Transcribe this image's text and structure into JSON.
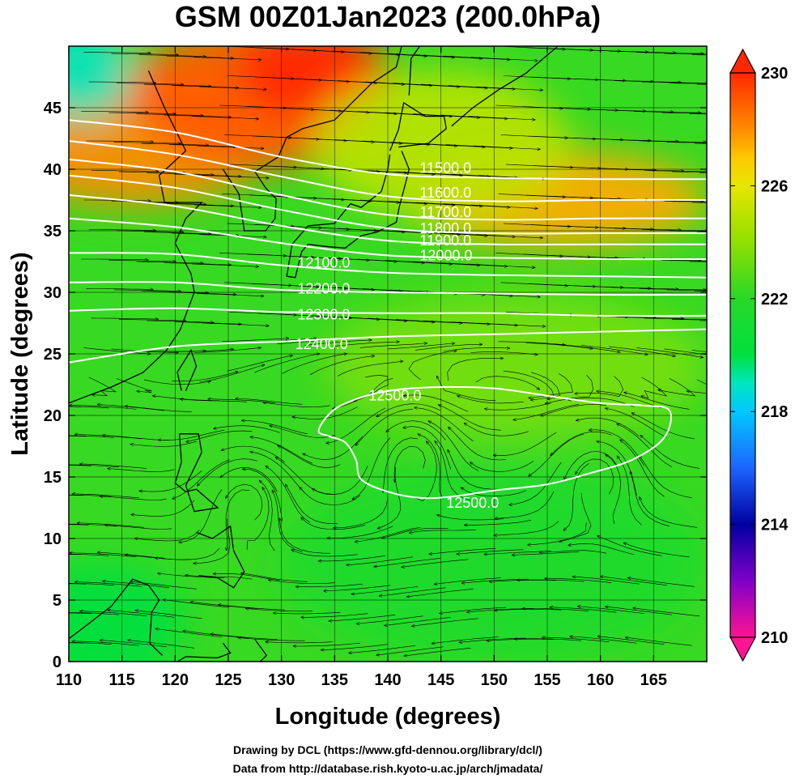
{
  "chart_data": {
    "type": "heatmap",
    "title": "GSM 00Z01Jan2023 (200.0hPa)",
    "xlabel": "Longitude (degrees)",
    "ylabel": "Latitude  (degrees)",
    "xlim": [
      110,
      170
    ],
    "ylim": [
      0,
      50
    ],
    "xticks": [
      "110",
      "115",
      "120",
      "125",
      "130",
      "135",
      "140",
      "145",
      "150",
      "155",
      "160",
      "165"
    ],
    "yticks": [
      "0",
      "5",
      "10",
      "15",
      "20",
      "25",
      "30",
      "35",
      "40",
      "45"
    ],
    "grid": true,
    "colorbar": {
      "range": [
        210,
        230
      ],
      "labels": [
        "230",
        "226",
        "222",
        "218",
        "214",
        "210"
      ],
      "stops": [
        {
          "v": 210,
          "color": "#ff1493"
        },
        {
          "v": 212,
          "color": "#8000c8"
        },
        {
          "v": 214,
          "color": "#0000a0"
        },
        {
          "v": 216,
          "color": "#1e64ff"
        },
        {
          "v": 218,
          "color": "#00c8ff"
        },
        {
          "v": 219,
          "color": "#00e6c0"
        },
        {
          "v": 220,
          "color": "#00e040"
        },
        {
          "v": 222,
          "color": "#28d828"
        },
        {
          "v": 224,
          "color": "#90e000"
        },
        {
          "v": 226,
          "color": "#e6e600"
        },
        {
          "v": 227,
          "color": "#ffc800"
        },
        {
          "v": 228,
          "color": "#ff8c00"
        },
        {
          "v": 230,
          "color": "#ff2800"
        }
      ]
    },
    "field_blobs": [
      {
        "lon": 116,
        "lat": 43,
        "rx": 14,
        "ry": 6,
        "v": 228
      },
      {
        "lon": 128,
        "lat": 46,
        "rx": 12,
        "ry": 6,
        "v": 229
      },
      {
        "lon": 133,
        "lat": 48,
        "rx": 7,
        "ry": 4,
        "v": 230
      },
      {
        "lon": 156,
        "lat": 37.5,
        "rx": 14,
        "ry": 4,
        "v": 227.5
      },
      {
        "lon": 145,
        "lat": 42,
        "rx": 12,
        "ry": 6,
        "v": 225
      },
      {
        "lon": 111,
        "lat": 48,
        "rx": 5,
        "ry": 4,
        "v": 219
      },
      {
        "lon": 113,
        "lat": 3,
        "rx": 8,
        "ry": 5,
        "v": 220
      },
      {
        "lon": 152,
        "lat": 24,
        "rx": 18,
        "ry": 6,
        "v": 223.5
      },
      {
        "lon": 150,
        "lat": 8,
        "rx": 20,
        "ry": 8,
        "v": 221.5
      }
    ],
    "contours": [
      {
        "level": "11500.0",
        "points": [
          [
            110,
            44
          ],
          [
            120,
            43
          ],
          [
            130,
            41
          ],
          [
            140,
            39.6
          ],
          [
            150,
            39.3
          ],
          [
            160,
            39.2
          ],
          [
            170,
            39.2
          ]
        ]
      },
      {
        "level": "11600.0",
        "points": [
          [
            110,
            42.3
          ],
          [
            120,
            41.2
          ],
          [
            130,
            39.4
          ],
          [
            140,
            37.8
          ],
          [
            150,
            37.4
          ],
          [
            160,
            37.5
          ],
          [
            170,
            37.5
          ]
        ]
      },
      {
        "level": "11700.0",
        "points": [
          [
            110,
            40.8
          ],
          [
            120,
            39.8
          ],
          [
            130,
            37.9
          ],
          [
            140,
            36.3
          ],
          [
            150,
            35.9
          ],
          [
            160,
            36
          ],
          [
            170,
            36
          ]
        ]
      },
      {
        "level": "11800.0",
        "points": [
          [
            110,
            39.5
          ],
          [
            120,
            38.5
          ],
          [
            130,
            36.7
          ],
          [
            140,
            35.2
          ],
          [
            150,
            34.8
          ],
          [
            160,
            34.8
          ],
          [
            170,
            34.8
          ]
        ]
      },
      {
        "level": "11900.0",
        "points": [
          [
            110,
            37.9
          ],
          [
            120,
            37
          ],
          [
            130,
            35.4
          ],
          [
            140,
            34.2
          ],
          [
            150,
            33.9
          ],
          [
            160,
            33.9
          ],
          [
            170,
            33.9
          ]
        ]
      },
      {
        "level": "12000.0",
        "points": [
          [
            110,
            36
          ],
          [
            120,
            35.3
          ],
          [
            130,
            34
          ],
          [
            140,
            33
          ],
          [
            150,
            32.8
          ],
          [
            160,
            32.7
          ],
          [
            170,
            32.7
          ]
        ]
      },
      {
        "level": "12100.0",
        "points": [
          [
            110,
            33.2
          ],
          [
            120,
            33.1
          ],
          [
            130,
            32.2
          ],
          [
            140,
            31.6
          ],
          [
            150,
            31.4
          ],
          [
            160,
            31.3
          ],
          [
            170,
            31.2
          ]
        ]
      },
      {
        "level": "12200.0",
        "points": [
          [
            110,
            30.8
          ],
          [
            120,
            30.8
          ],
          [
            130,
            30.2
          ],
          [
            140,
            30
          ],
          [
            150,
            29.9
          ],
          [
            160,
            29.8
          ],
          [
            170,
            29.8
          ]
        ]
      },
      {
        "level": "12300.0",
        "points": [
          [
            110,
            28.5
          ],
          [
            120,
            28.7
          ],
          [
            130,
            28.4
          ],
          [
            140,
            28.3
          ],
          [
            150,
            28.3
          ],
          [
            160,
            28.1
          ],
          [
            170,
            28.1
          ]
        ]
      },
      {
        "level": "12400.0",
        "points": [
          [
            110,
            24.3
          ],
          [
            120,
            25.6
          ],
          [
            130,
            26
          ],
          [
            140,
            26.4
          ],
          [
            150,
            26.6
          ],
          [
            160,
            26.8
          ],
          [
            170,
            27
          ]
        ]
      }
    ],
    "closed_contour": {
      "level": "12500.0",
      "points": [
        [
          133.5,
          18.8
        ],
        [
          135,
          20.5
        ],
        [
          138,
          21.6
        ],
        [
          141,
          22.1
        ],
        [
          145,
          22.3
        ],
        [
          150,
          22.2
        ],
        [
          155,
          21.6
        ],
        [
          160,
          21
        ],
        [
          164,
          20.8
        ],
        [
          166.5,
          20.4
        ],
        [
          166,
          18.2
        ],
        [
          163,
          16.4
        ],
        [
          159,
          15.3
        ],
        [
          155,
          14.4
        ],
        [
          150,
          13.9
        ],
        [
          146,
          13.4
        ],
        [
          143,
          13.3
        ],
        [
          140,
          13.8
        ],
        [
          137.5,
          14.8
        ],
        [
          137,
          16.4
        ],
        [
          136,
          17.8
        ],
        [
          134.5,
          18.3
        ]
      ]
    },
    "contour_labels": [
      {
        "text": "11500.0",
        "lon": 143,
        "lat": 40.1
      },
      {
        "text": "11600.0",
        "lon": 143,
        "lat": 38.1
      },
      {
        "text": "11700.0",
        "lon": 143,
        "lat": 36.5
      },
      {
        "text": "11800.0",
        "lon": 143,
        "lat": 35.2
      },
      {
        "text": "11900.0",
        "lon": 143,
        "lat": 34.2
      },
      {
        "text": "12000.0",
        "lon": 143,
        "lat": 33
      },
      {
        "text": "12100.0",
        "lon": 131.5,
        "lat": 32.4
      },
      {
        "text": "12200.0",
        "lon": 131.5,
        "lat": 30.3
      },
      {
        "text": "12300.0",
        "lon": 131.5,
        "lat": 28.2
      },
      {
        "text": "12400.0",
        "lon": 131.3,
        "lat": 25.8
      },
      {
        "text": "12500.0",
        "lon": 138.2,
        "lat": 21.6
      },
      {
        "text": "12500.0",
        "lon": 145.5,
        "lat": 12.9
      }
    ],
    "vortices": [
      {
        "lon": 142.5,
        "lat": 17.5
      },
      {
        "lon": 160,
        "lat": 16
      },
      {
        "lon": 127,
        "lat": 14
      }
    ]
  },
  "credits": {
    "line1": "Drawing by DCL (https://www.gfd-dennou.org/library/dcl/)",
    "line2": "Data from http://database.rish.kyoto-u.ac.jp/arch/jmadata/"
  }
}
